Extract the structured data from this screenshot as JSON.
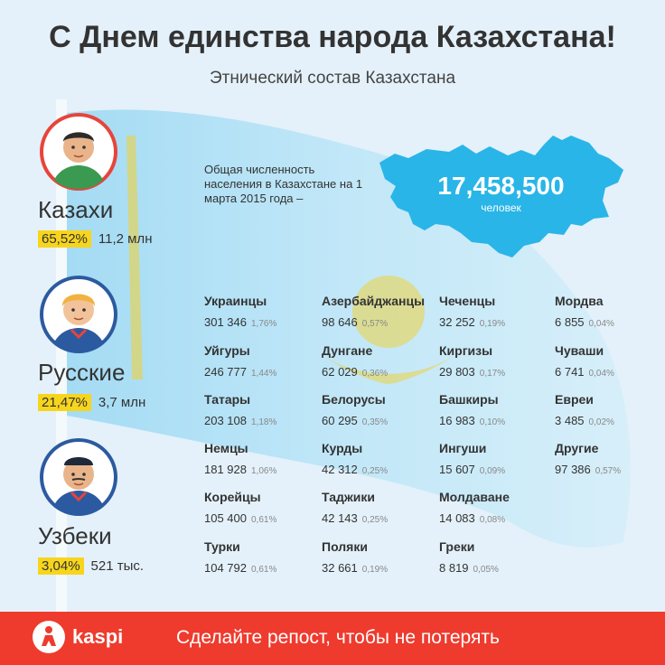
{
  "header": {
    "title": "С Днем единства народа Казахстана!",
    "subtitle": "Этнический состав Казахстана"
  },
  "main_groups": [
    {
      "name": "Казахи",
      "percent": "65,52%",
      "count": "11,2 млн",
      "accent": "#e8443a"
    },
    {
      "name": "Русские",
      "percent": "21,47%",
      "count": "3,7 млн",
      "accent": "#2c5aa0"
    },
    {
      "name": "Узбеки",
      "percent": "3,04%",
      "count": "521 тыс.",
      "accent": "#2c5aa0"
    }
  ],
  "population": {
    "text": "Общая численность населения в Казахстане на 1 марта 2015 года –",
    "total": "17,458,500",
    "unit": "человек"
  },
  "ethnic_groups": [
    [
      {
        "name": "Украинцы",
        "count": "301 346",
        "pct": "1,76%"
      },
      {
        "name": "Уйгуры",
        "count": "246 777",
        "pct": "1,44%"
      },
      {
        "name": "Татары",
        "count": "203 108",
        "pct": "1,18%"
      },
      {
        "name": "Немцы",
        "count": "181 928",
        "pct": "1,06%"
      },
      {
        "name": "Корейцы",
        "count": "105 400",
        "pct": "0,61%"
      },
      {
        "name": "Турки",
        "count": "104 792",
        "pct": "0,61%"
      }
    ],
    [
      {
        "name": "Азербайджанцы",
        "count": "98 646",
        "pct": "0,57%"
      },
      {
        "name": "Дунгане",
        "count": "62 029",
        "pct": "0,36%"
      },
      {
        "name": "Белорусы",
        "count": "60 295",
        "pct": "0,35%"
      },
      {
        "name": "Курды",
        "count": "42 312",
        "pct": "0,25%"
      },
      {
        "name": "Таджики",
        "count": "42 143",
        "pct": "0,25%"
      },
      {
        "name": "Поляки",
        "count": "32 661",
        "pct": "0,19%"
      }
    ],
    [
      {
        "name": "Чеченцы",
        "count": "32 252",
        "pct": "0,19%"
      },
      {
        "name": "Киргизы",
        "count": "29 803",
        "pct": "0,17%"
      },
      {
        "name": "Башкиры",
        "count": "16 983",
        "pct": "0,10%"
      },
      {
        "name": "Ингуши",
        "count": "15 607",
        "pct": "0,09%"
      },
      {
        "name": "Молдаване",
        "count": "14 083",
        "pct": "0,08%"
      },
      {
        "name": "Греки",
        "count": "8 819",
        "pct": "0,05%"
      }
    ],
    [
      {
        "name": "Мордва",
        "count": "6 855",
        "pct": "0,04%"
      },
      {
        "name": "Чуваши",
        "count": "6 741",
        "pct": "0,04%"
      },
      {
        "name": "Евреи",
        "count": "3 485",
        "pct": "0,02%"
      },
      {
        "name": "Другие",
        "count": "97 386",
        "pct": "0,57%"
      }
    ]
  ],
  "footer": {
    "brand": "kaspi",
    "cta": "Сделайте репост, чтобы не потерять",
    "background": "#ee3b2e"
  },
  "colors": {
    "flag": "#29b5e8",
    "ornament": "#f2cf2e",
    "badge": "#f7d51d"
  }
}
